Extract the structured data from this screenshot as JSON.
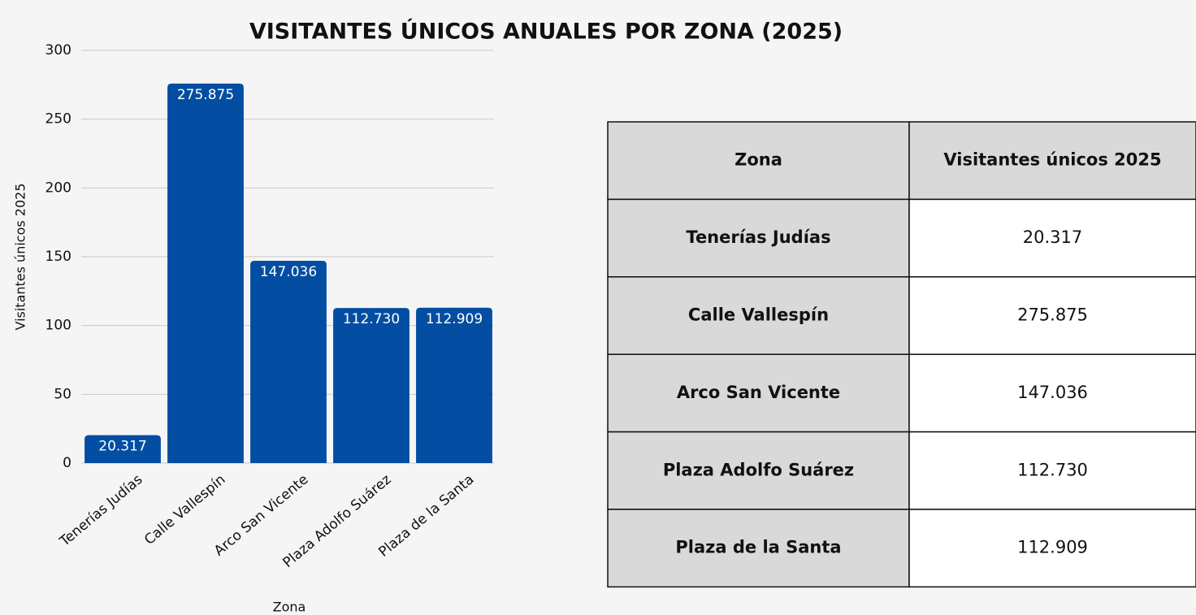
{
  "chart_data": {
    "type": "bar",
    "title": "VISITANTES ÚNICOS ANUALES POR ZONA (2025)",
    "x_label": "Zona",
    "y_label": "Visitantes únicos 2025",
    "categories": [
      "Tenerías Judías",
      "Calle Vallespín",
      "Arco San Vicente",
      "Plaza Adolfo Suárez",
      "Plaza de la Santa"
    ],
    "values": [
      20.317,
      275.875,
      147.036,
      112.73,
      112.909
    ],
    "value_labels": [
      "20.317",
      "275.875",
      "147.036",
      "112.730",
      "112.909"
    ],
    "color": "#034ea2",
    "ylim": [
      0,
      300
    ],
    "yticks": [
      0,
      50,
      100,
      150,
      200,
      250,
      300
    ],
    "grid": true
  },
  "table": {
    "header": [
      "Zona",
      "Visitantes únicos 2025"
    ],
    "rows": [
      [
        "Tenerías Judías",
        "20.317"
      ],
      [
        "Calle Vallespín",
        "275.875"
      ],
      [
        "Arco San Vicente",
        "147.036"
      ],
      [
        "Plaza Adolfo Suárez",
        "112.730"
      ],
      [
        "Plaza de la Santa",
        "112.909"
      ]
    ]
  }
}
